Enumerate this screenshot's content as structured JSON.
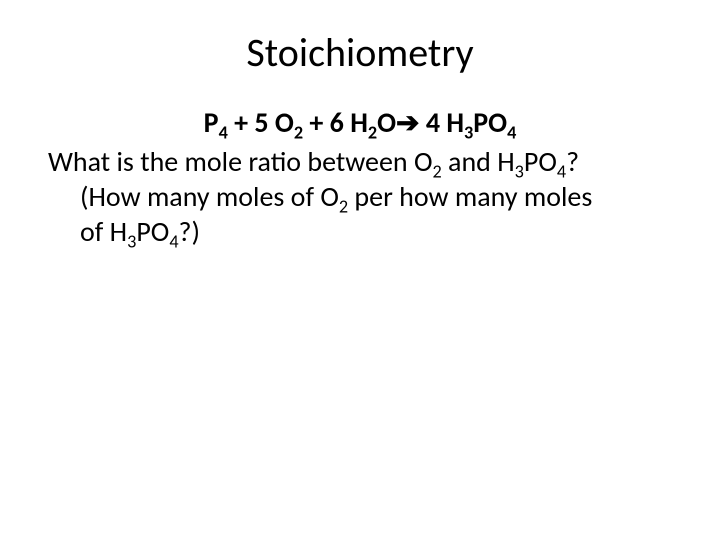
{
  "title": "Stoichiometry",
  "equation": {
    "p4": "P",
    "p4_sub": "4",
    "plus1": " + 5 O",
    "o2_sub": "2",
    "plus2": " + 6 H",
    "h2o_sub1": "2",
    "h2o_o": "O",
    "arrow": "➔",
    "space": " ",
    "prod_coef": "4 H",
    "h3_sub": "3",
    "po": "PO",
    "po4_sub": "4"
  },
  "question": {
    "line1_a": "What is the mole ratio between O",
    "line1_sub1": "2",
    "line1_b": " and H",
    "line1_sub2": "3",
    "line1_c": "PO",
    "line1_sub3": "4",
    "line1_d": "?",
    "line2_a": "(How many moles of O",
    "line2_sub1": "2",
    "line2_b": " per how many moles",
    "line3_a": "of H",
    "line3_sub1": "3",
    "line3_b": "PO",
    "line3_sub2": "4",
    "line3_c": "?)"
  },
  "colors": {
    "background": "#ffffff",
    "text": "#000000"
  },
  "fonts": {
    "title_size": 40,
    "body_size": 28
  }
}
